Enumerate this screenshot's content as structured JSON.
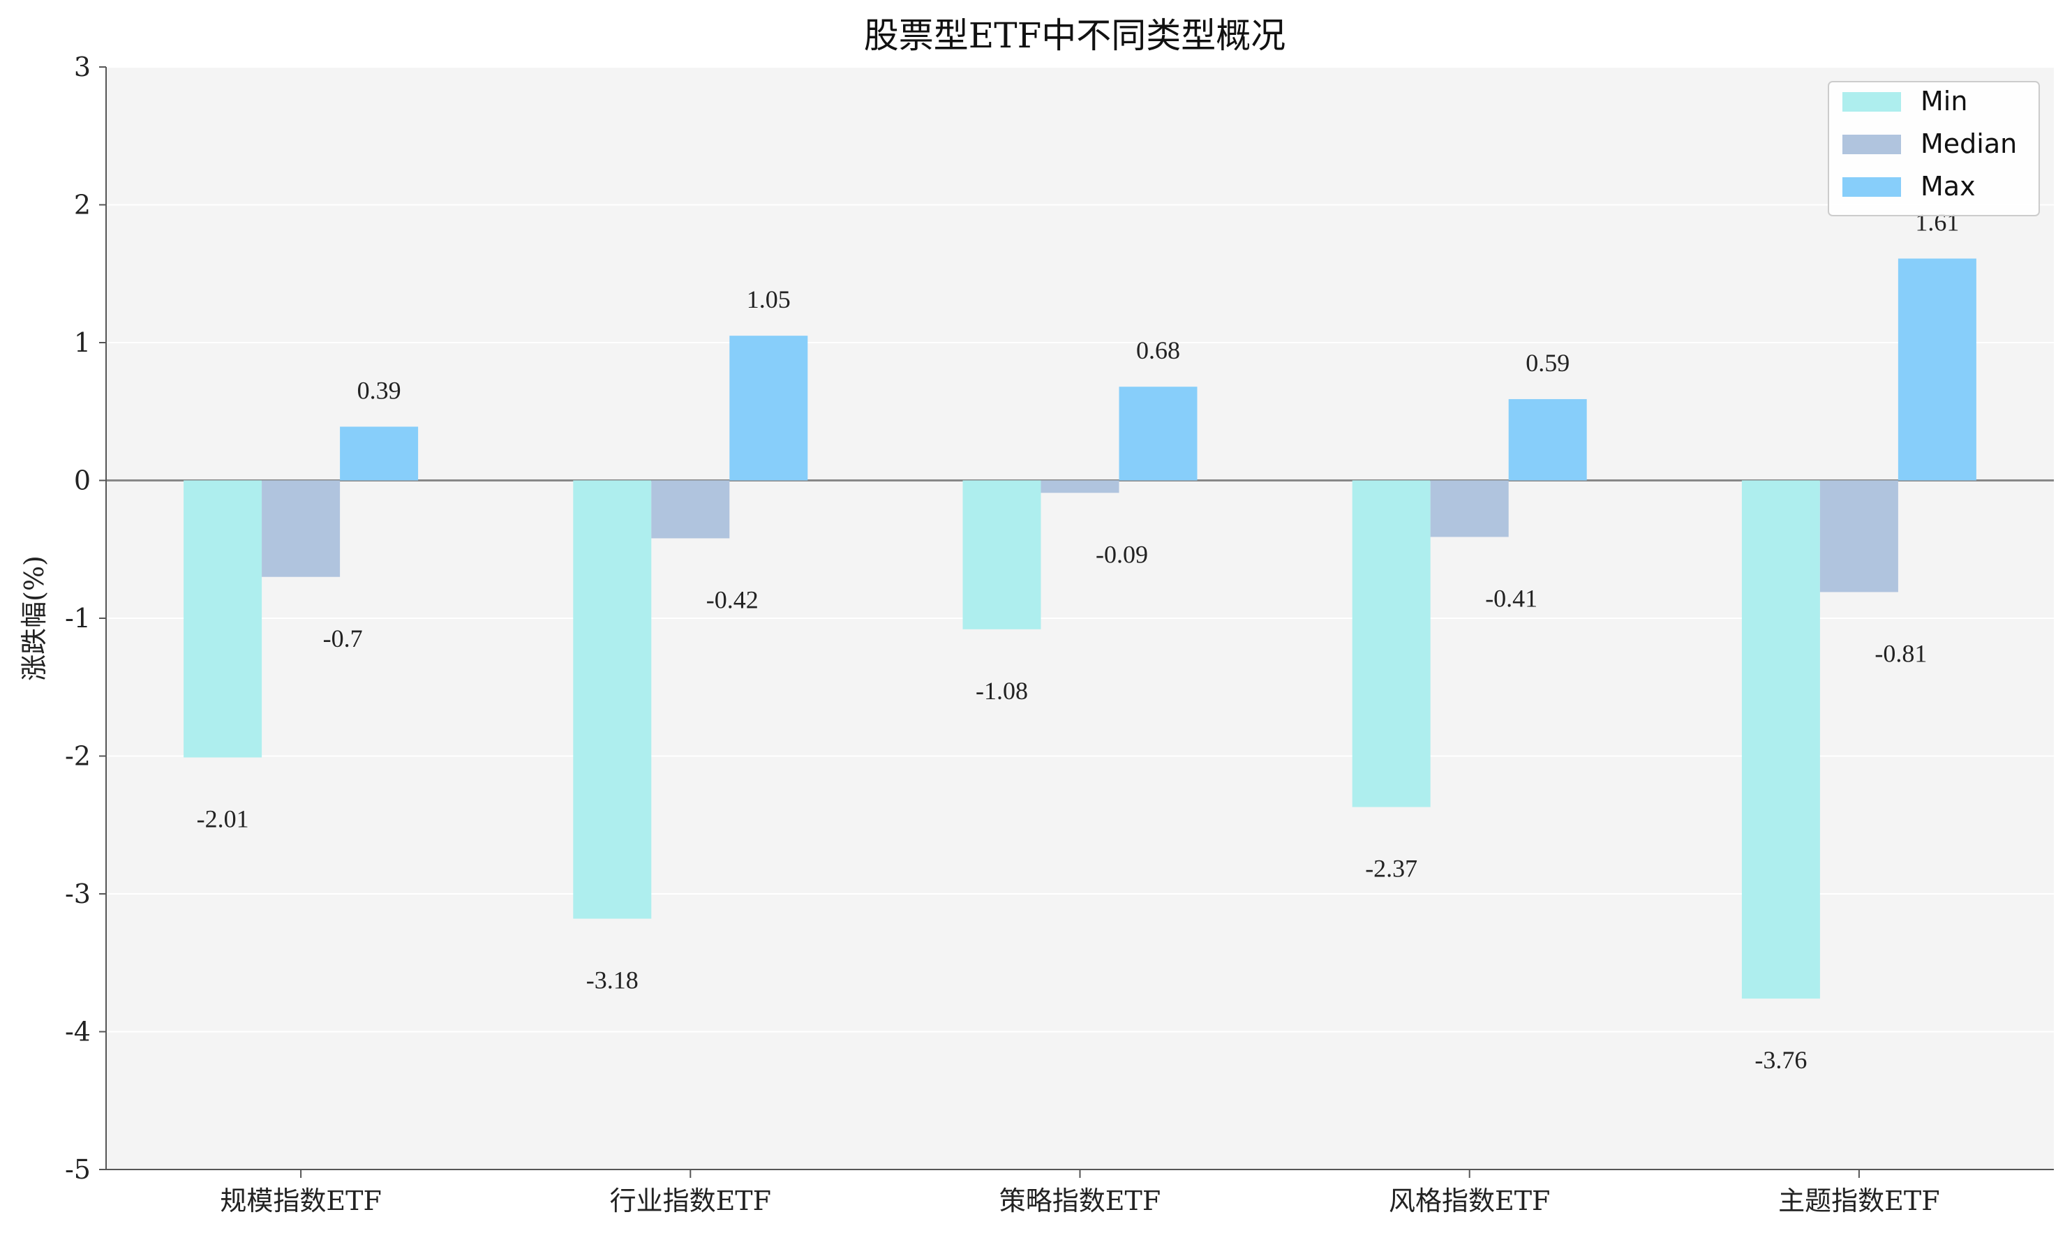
{
  "chart_data": {
    "type": "bar",
    "title": "股票型ETF中不同类型概况",
    "xlabel": "",
    "ylabel": "涨跌幅(%)",
    "ylim": [
      -5,
      3
    ],
    "yticks": [
      3,
      2,
      1,
      0,
      -1,
      -2,
      -3,
      -4,
      -5
    ],
    "categories": [
      "规模指数ETF",
      "行业指数ETF",
      "策略指数ETF",
      "风格指数ETF",
      "主题指数ETF"
    ],
    "series": [
      {
        "name": "Min",
        "color": "#aeeeee",
        "values": [
          -2.01,
          -3.18,
          -1.08,
          -2.37,
          -3.76
        ]
      },
      {
        "name": "Median",
        "color": "#b0c4de",
        "values": [
          -0.7,
          -0.42,
          -0.09,
          -0.41,
          -0.81
        ]
      },
      {
        "name": "Max",
        "color": "#87cefa",
        "values": [
          0.39,
          1.05,
          0.68,
          0.59,
          1.61
        ]
      }
    ],
    "grid": true,
    "legend_position": "top-right",
    "background_color": "#f4f4f4"
  }
}
